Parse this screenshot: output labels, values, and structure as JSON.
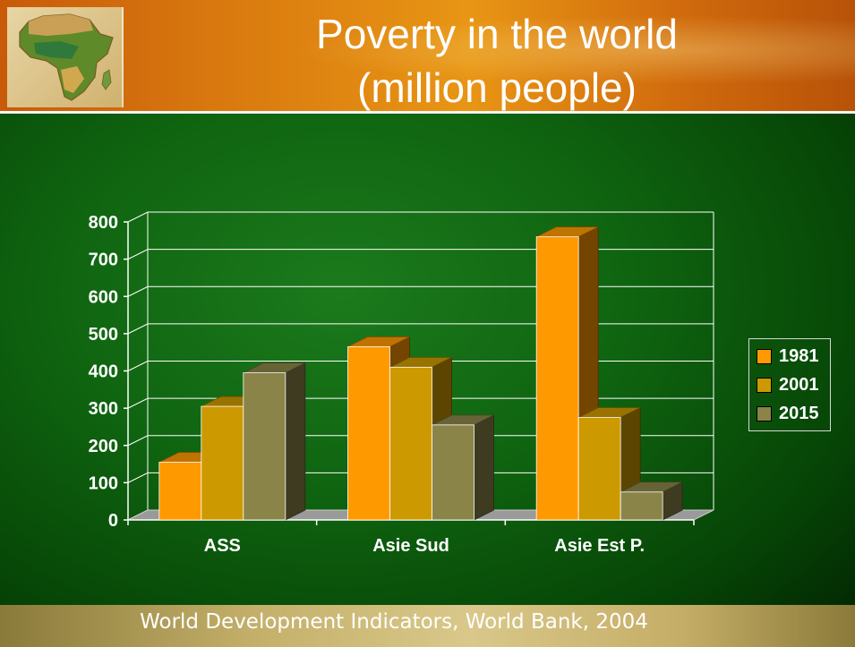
{
  "slide": {
    "title_line1": "Poverty in the world",
    "title_line2": "(million people)",
    "footer": "World Development Indicators, World Bank, 2004"
  },
  "logo": {
    "icon": "africa-map-icon"
  },
  "colors": {
    "series_1981": "#ff9900",
    "series_2001": "#cc9900",
    "series_2015": "#8a8448",
    "axis_text": "#ffffff",
    "gridline": "#ffffff"
  },
  "chart_data": {
    "type": "bar",
    "title": "Poverty in the world (million people)",
    "categories": [
      "ASS",
      "Asie Sud",
      "Asie Est P."
    ],
    "series": [
      {
        "name": "1981",
        "values": [
          155,
          465,
          760
        ]
      },
      {
        "name": "2001",
        "values": [
          305,
          410,
          275
        ]
      },
      {
        "name": "2015",
        "values": [
          395,
          255,
          75
        ]
      }
    ],
    "ylim": [
      0,
      800
    ],
    "yticks": [
      "0",
      "100",
      "200",
      "300",
      "400",
      "500",
      "600",
      "700",
      "800"
    ],
    "grid": true,
    "legend_position": "right",
    "style": "3d-clustered-column"
  }
}
